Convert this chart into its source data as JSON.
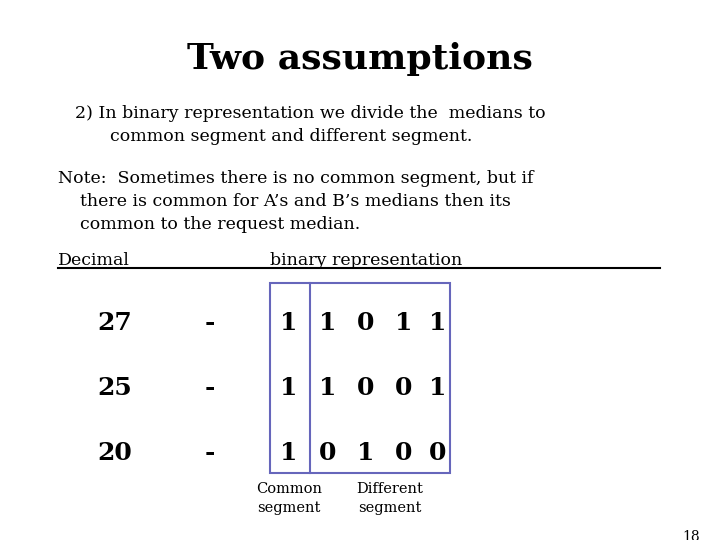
{
  "title": "Two assumptions",
  "line1": "2) In binary representation we divide the  medians to",
  "line2": "common segment and different segment.",
  "note_line1": "Note:  Sometimes there is no common segment, but if",
  "note_line2": "    there is common for A’s and B’s medians then its",
  "note_line3": "    common to the request median.",
  "decimal_label": "Decimal",
  "binary_label": "binary representation",
  "rows": [
    {
      "decimal": "27",
      "dash": "-",
      "binary": [
        "1",
        "1",
        "0",
        "1",
        "1"
      ]
    },
    {
      "decimal": "25",
      "dash": "-",
      "binary": [
        "1",
        "1",
        "0",
        "0",
        "1"
      ]
    },
    {
      "decimal": "20",
      "dash": "-",
      "binary": [
        "1",
        "0",
        "1",
        "0",
        "0"
      ]
    }
  ],
  "common_label1": "Common",
  "different_label1": "Different",
  "common_label2": "segment",
  "different_label2": "segment",
  "page_number": "18",
  "bg_color": "#ffffff",
  "text_color": "#000000",
  "title_fontsize": 26,
  "body_fontsize": 12.5,
  "decimal_fontsize": 18,
  "binary_fontsize": 18,
  "label_fontsize": 10.5
}
